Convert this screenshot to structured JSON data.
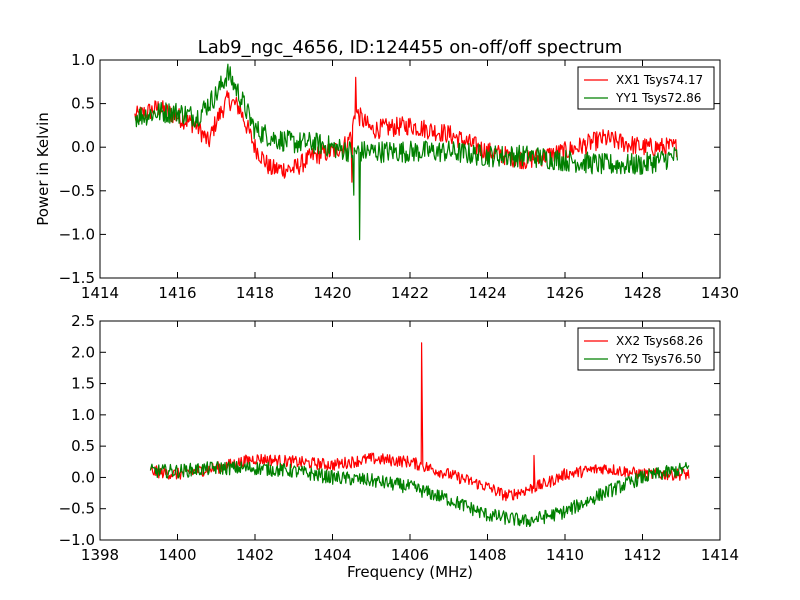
{
  "chart_data": [
    {
      "type": "line",
      "title": "Lab9_ngc_4656, ID:124455 on-off/off spectrum",
      "xlabel": "",
      "ylabel": "Power in Kelvin",
      "xlim": [
        1414,
        1430
      ],
      "ylim": [
        -1.5,
        1.0
      ],
      "x_ticks": [
        "1414",
        "1416",
        "1418",
        "1420",
        "1422",
        "1424",
        "1426",
        "1428",
        "1430"
      ],
      "y_ticks": [
        "1.0",
        "0.5",
        "0.0",
        "−0.5",
        "−1.0",
        "−1.5"
      ],
      "legend": "top-right",
      "grid": false,
      "series": [
        {
          "name": "XX1 Tsys74.17",
          "color": "#ff0000",
          "x_range": [
            1414.9,
            1428.9
          ],
          "points": [
            [
              1414.9,
              0.35
            ],
            [
              1415.5,
              0.45
            ],
            [
              1416.0,
              0.35
            ],
            [
              1416.5,
              0.25
            ],
            [
              1416.8,
              0.05
            ],
            [
              1417.0,
              0.3
            ],
            [
              1417.3,
              0.55
            ],
            [
              1417.6,
              0.45
            ],
            [
              1418.0,
              0.0
            ],
            [
              1418.4,
              -0.25
            ],
            [
              1419.0,
              -0.25
            ],
            [
              1419.5,
              -0.1
            ],
            [
              1420.0,
              -0.05
            ],
            [
              1420.4,
              0.05
            ],
            [
              1420.6,
              0.4
            ],
            [
              1421.0,
              0.2
            ],
            [
              1422.0,
              0.25
            ],
            [
              1423.0,
              0.15
            ],
            [
              1424.0,
              -0.05
            ],
            [
              1425.0,
              -0.15
            ],
            [
              1426.0,
              -0.05
            ],
            [
              1427.0,
              0.1
            ],
            [
              1428.0,
              0.0
            ],
            [
              1428.9,
              0.0
            ]
          ],
          "noise": 0.07
        },
        {
          "name": "YY1 Tsys72.86",
          "color": "#008000",
          "x_range": [
            1414.9,
            1428.9
          ],
          "points": [
            [
              1414.9,
              0.35
            ],
            [
              1415.5,
              0.4
            ],
            [
              1416.0,
              0.4
            ],
            [
              1416.5,
              0.35
            ],
            [
              1417.0,
              0.6
            ],
            [
              1417.3,
              0.85
            ],
            [
              1417.6,
              0.6
            ],
            [
              1418.0,
              0.2
            ],
            [
              1418.5,
              0.1
            ],
            [
              1419.0,
              0.05
            ],
            [
              1419.5,
              0.05
            ],
            [
              1420.0,
              0.0
            ],
            [
              1420.5,
              -0.05
            ],
            [
              1421.0,
              -0.05
            ],
            [
              1422.0,
              -0.05
            ],
            [
              1423.0,
              -0.05
            ],
            [
              1424.0,
              -0.1
            ],
            [
              1425.0,
              -0.1
            ],
            [
              1426.0,
              -0.15
            ],
            [
              1427.0,
              -0.2
            ],
            [
              1428.0,
              -0.2
            ],
            [
              1428.9,
              -0.1
            ]
          ],
          "noise": 0.08
        }
      ],
      "spikes": [
        {
          "series": 0,
          "x": 1420.6,
          "y": 0.8
        },
        {
          "series": 0,
          "x": 1420.5,
          "y": -0.4
        },
        {
          "series": 1,
          "x": 1420.55,
          "y": -0.55
        },
        {
          "series": 1,
          "x": 1420.7,
          "y": -1.06
        }
      ]
    },
    {
      "type": "line",
      "title": "",
      "xlabel": "Frequency (MHz)",
      "ylabel": "",
      "xlim": [
        1398,
        1414
      ],
      "ylim": [
        -1.0,
        2.5
      ],
      "x_ticks": [
        "1398",
        "1400",
        "1402",
        "1404",
        "1406",
        "1408",
        "1410",
        "1412",
        "1414"
      ],
      "y_ticks": [
        "2.5",
        "2.0",
        "1.5",
        "1.0",
        "0.5",
        "0.0",
        "−0.5",
        "−1.0"
      ],
      "legend": "top-right",
      "grid": false,
      "series": [
        {
          "name": "XX2 Tsys68.26",
          "color": "#ff0000",
          "x_range": [
            1399.3,
            1413.2
          ],
          "points": [
            [
              1399.3,
              0.1
            ],
            [
              1400.0,
              0.05
            ],
            [
              1401.0,
              0.15
            ],
            [
              1402.0,
              0.3
            ],
            [
              1403.0,
              0.25
            ],
            [
              1404.0,
              0.2
            ],
            [
              1405.0,
              0.3
            ],
            [
              1406.0,
              0.25
            ],
            [
              1407.0,
              0.05
            ],
            [
              1408.0,
              -0.15
            ],
            [
              1408.5,
              -0.3
            ],
            [
              1409.0,
              -0.2
            ],
            [
              1409.5,
              -0.1
            ],
            [
              1410.0,
              0.05
            ],
            [
              1411.0,
              0.15
            ],
            [
              1412.0,
              0.05
            ],
            [
              1413.2,
              0.05
            ]
          ],
          "noise": 0.06
        },
        {
          "name": "YY2 Tsys76.50",
          "color": "#008000",
          "x_range": [
            1399.3,
            1413.2
          ],
          "points": [
            [
              1399.3,
              0.1
            ],
            [
              1400.0,
              0.1
            ],
            [
              1401.0,
              0.15
            ],
            [
              1402.0,
              0.15
            ],
            [
              1403.0,
              0.1
            ],
            [
              1404.0,
              0.0
            ],
            [
              1405.0,
              -0.05
            ],
            [
              1406.0,
              -0.15
            ],
            [
              1407.0,
              -0.35
            ],
            [
              1408.0,
              -0.6
            ],
            [
              1409.0,
              -0.7
            ],
            [
              1410.0,
              -0.55
            ],
            [
              1411.0,
              -0.25
            ],
            [
              1412.0,
              0.0
            ],
            [
              1413.2,
              0.15
            ]
          ],
          "noise": 0.07
        }
      ],
      "spikes": [
        {
          "series": 0,
          "x": 1406.3,
          "y": 2.15
        },
        {
          "series": 0,
          "x": 1409.2,
          "y": 0.35
        }
      ]
    }
  ]
}
